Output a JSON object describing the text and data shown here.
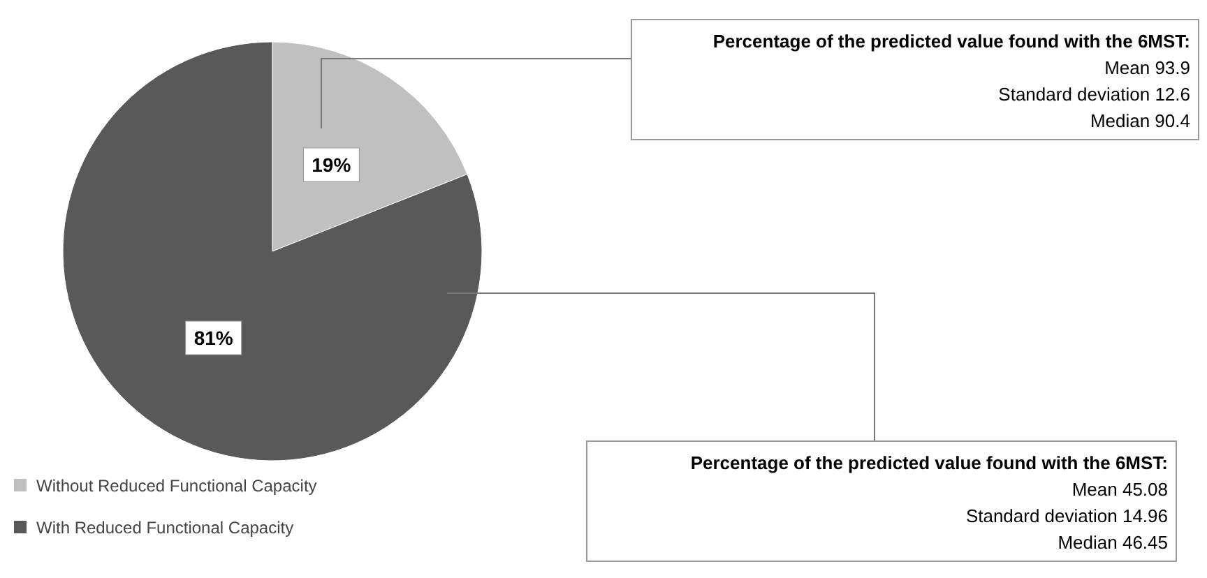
{
  "chart_data": {
    "type": "pie",
    "categories": [
      "Without Reduced Functional Capacity",
      "With Reduced Functional Capacity"
    ],
    "values": [
      19,
      81
    ],
    "colors": [
      "#c0c0c0",
      "#595959"
    ],
    "value_labels": [
      "19%",
      "81%"
    ],
    "legend": "bottom left",
    "annotations": [
      "Percentage of the predicted value found with the 6MST:",
      "Mean 93.9",
      "Standard deviation 12.6",
      "Median 90.4",
      "Percentage of the predicted value found with the 6MST:",
      "Mean 45.08",
      "Standard deviation 14.96",
      "Median 46.45"
    ]
  }
}
